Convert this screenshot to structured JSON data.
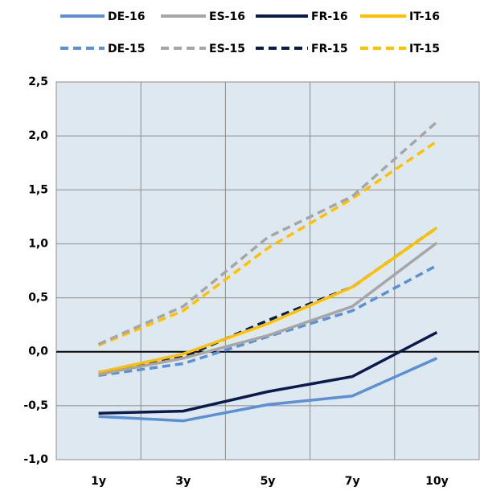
{
  "chart_data": {
    "type": "line",
    "categories": [
      "1y",
      "3y",
      "5y",
      "7y",
      "10y"
    ],
    "series": [
      {
        "name": "DE-16",
        "color": "#5b8fd6",
        "style": "solid",
        "values": [
          -0.6,
          -0.64,
          -0.49,
          -0.41,
          -0.06
        ]
      },
      {
        "name": "ES-16",
        "color": "#a6a6a6",
        "style": "solid",
        "values": [
          -0.21,
          -0.06,
          0.15,
          0.42,
          1.01
        ]
      },
      {
        "name": "FR-16",
        "color": "#0b1a4d",
        "style": "solid",
        "values": [
          -0.57,
          -0.55,
          -0.37,
          -0.23,
          0.18
        ]
      },
      {
        "name": "IT-16",
        "color": "#ffc000",
        "style": "solid",
        "values": [
          -0.19,
          -0.02,
          0.26,
          0.6,
          1.15
        ]
      },
      {
        "name": "DE-15",
        "color": "#5b8fd6",
        "style": "dashed",
        "values": [
          -0.22,
          -0.11,
          0.14,
          0.38,
          0.8
        ]
      },
      {
        "name": "ES-15",
        "color": "#a6a6a6",
        "style": "dashed",
        "values": [
          0.07,
          0.42,
          1.06,
          1.44,
          2.13
        ]
      },
      {
        "name": "FR-15",
        "color": "#0b1a4d",
        "style": "dashed",
        "values": [
          -0.19,
          -0.05,
          0.29,
          0.6,
          1.15
        ]
      },
      {
        "name": "IT-15",
        "color": "#ffc000",
        "style": "dashed",
        "values": [
          0.06,
          0.38,
          0.96,
          1.42,
          1.95
        ]
      }
    ],
    "ylim": [
      -1.0,
      2.5
    ],
    "yticks": [
      {
        "value": -1.0,
        "label": "-1,0"
      },
      {
        "value": -0.5,
        "label": "-0,5"
      },
      {
        "value": 0,
        "label": "0,0"
      },
      {
        "value": 0.5,
        "label": "0,5"
      },
      {
        "value": 1.0,
        "label": "1,0"
      },
      {
        "value": 1.5,
        "label": "1,5"
      },
      {
        "value": 2.0,
        "label": "2,0"
      },
      {
        "value": 2.5,
        "label": "2,5"
      }
    ],
    "grid": true
  }
}
